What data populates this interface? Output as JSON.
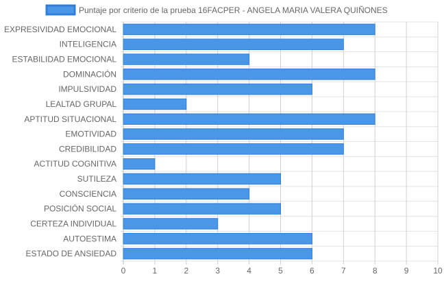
{
  "chart_data": {
    "type": "bar",
    "orientation": "horizontal",
    "legend": {
      "position": "top",
      "entries": [
        "Puntaje por criterio de la prueba 16FACPER - ANGELA MARIA VALERA QUIÑONES"
      ]
    },
    "categories": [
      "EXPRESIVIDAD EMOCIONAL",
      "INTELIGENCIA",
      "ESTABILIDAD EMOCIONAL",
      "DOMINACIÓN",
      "IMPULSIVIDAD",
      "LEALTAD GRUPAL",
      "APTITUD SITUACIONAL",
      "EMOTIVIDAD",
      "CREDIBILIDAD",
      "ACTITUD COGNITIVA",
      "SUTILEZA",
      "CONSCIENCIA",
      "POSICIÓN SOCIAL",
      "CERTEZA INDIVIDUAL",
      "AUTOESTIMA",
      "ESTADO DE ANSIEDAD"
    ],
    "series": [
      {
        "name": "Puntaje por criterio de la prueba 16FACPER - ANGELA MARIA VALERA QUIÑONES",
        "values": [
          8,
          7,
          4,
          8,
          6,
          2,
          8,
          7,
          7,
          1,
          5,
          4,
          5,
          3,
          6,
          6
        ],
        "color": "#4a97e8",
        "border_color": "#2e7fd8"
      }
    ],
    "xlim": [
      0,
      10
    ],
    "x_ticks": [
      "0",
      "1",
      "2",
      "3",
      "4",
      "5",
      "6",
      "7",
      "8",
      "9",
      "10"
    ],
    "grid": true
  }
}
